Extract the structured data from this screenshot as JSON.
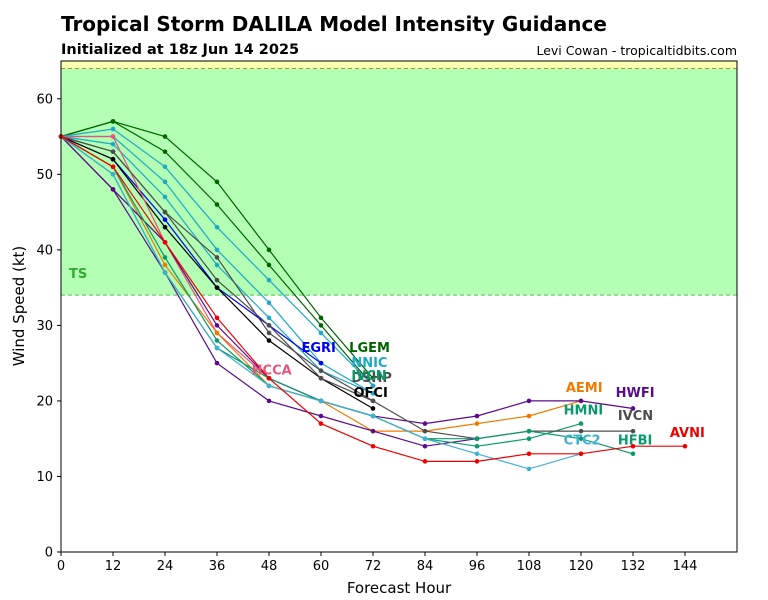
{
  "header": {
    "title": "Tropical Storm DALILA Model Intensity Guidance",
    "subtitle": "Initialized at 18z Jun 14 2025",
    "credit": "Levi Cowan - tropicaltidbits.com"
  },
  "chart_data": {
    "type": "line",
    "xlabel": "Forecast Hour",
    "ylabel": "Wind Speed (kt)",
    "xlim": [
      0,
      156
    ],
    "ylim": [
      0,
      65
    ],
    "xticks": [
      0,
      12,
      24,
      36,
      48,
      60,
      72,
      84,
      96,
      108,
      120,
      132,
      144
    ],
    "yticks": [
      0,
      10,
      20,
      30,
      40,
      50,
      60
    ],
    "grid": false,
    "legend": "none",
    "bands": [
      {
        "label": "TS",
        "from": 34,
        "to": 64,
        "color": "#b3ffb3",
        "label_color": "#33aa33"
      },
      {
        "label": "",
        "from": 64,
        "to": 65,
        "color": "#ffffb3",
        "label_color": "#888800"
      }
    ],
    "series": [
      {
        "name": "LGEM",
        "color": "#006400",
        "x": [
          0,
          12,
          24,
          36,
          48,
          60,
          72
        ],
        "y": [
          55,
          57,
          55,
          49,
          40,
          31,
          23
        ]
      },
      {
        "name": "",
        "color": "#006400",
        "x": [
          0,
          12,
          24,
          36,
          48,
          60,
          72
        ],
        "y": [
          55,
          57,
          53,
          46,
          38,
          30,
          22
        ]
      },
      {
        "name": "NNIC",
        "color": "#1fa8c9",
        "x": [
          0,
          12,
          24,
          36,
          48,
          60,
          72
        ],
        "y": [
          55,
          56,
          51,
          43,
          36,
          29,
          22
        ]
      },
      {
        "name": "",
        "color": "#1fa8c9",
        "x": [
          0,
          12,
          24,
          36,
          48,
          60,
          72
        ],
        "y": [
          55,
          55,
          49,
          40,
          33,
          25,
          21
        ]
      },
      {
        "name": "",
        "color": "#1fa8c9",
        "x": [
          0,
          12,
          24,
          36,
          48,
          60,
          72
        ],
        "y": [
          55,
          54,
          47,
          38,
          31,
          24,
          21
        ]
      },
      {
        "name": "DSHP",
        "color": "#4d4d4d",
        "x": [
          0,
          12,
          24,
          36,
          48,
          60,
          72
        ],
        "y": [
          55,
          53,
          45,
          39,
          29,
          24,
          20
        ]
      },
      {
        "name": "EGRI",
        "color": "#0000ee",
        "x": [
          0,
          12,
          24,
          36,
          48,
          60
        ],
        "y": [
          55,
          52,
          44,
          35,
          30,
          25
        ]
      },
      {
        "name": "OFCI",
        "color": "#000000",
        "x": [
          0,
          12,
          24,
          36,
          48,
          60,
          72
        ],
        "y": [
          55,
          52,
          43,
          35,
          28,
          23,
          19
        ]
      },
      {
        "name": "HCCA",
        "color": "#e8547a",
        "x": [
          0,
          12,
          24,
          36,
          48
        ],
        "y": [
          55,
          55,
          41,
          29,
          23
        ]
      },
      {
        "name": "AEMI",
        "color": "#f07a00",
        "x": [
          0,
          12,
          24,
          36,
          48,
          60,
          72,
          84,
          96,
          108,
          120
        ],
        "y": [
          55,
          51,
          38,
          29,
          22,
          20,
          16,
          16,
          17,
          18,
          20
        ]
      },
      {
        "name": "HWFI",
        "color": "#5c0a8a",
        "x": [
          0,
          12,
          24,
          36,
          48,
          60,
          72,
          84,
          96,
          108,
          120,
          132
        ],
        "y": [
          55,
          48,
          41,
          30,
          23,
          20,
          18,
          17,
          18,
          20,
          20,
          19
        ]
      },
      {
        "name": "",
        "color": "#5c0a8a",
        "x": [
          0,
          12,
          24,
          36,
          48,
          60,
          72,
          84,
          96
        ],
        "y": [
          55,
          48,
          37,
          25,
          20,
          18,
          16,
          14,
          15
        ]
      },
      {
        "name": "HMNI",
        "color": "#0a9a6a",
        "x": [
          0,
          12,
          24,
          36,
          48,
          60,
          72,
          84,
          96,
          108,
          120
        ],
        "y": [
          55,
          51,
          39,
          28,
          22,
          20,
          18,
          15,
          14,
          15,
          17
        ]
      },
      {
        "name": "IVCN",
        "color": "#4d4d4d",
        "x": [
          0,
          12,
          24,
          36,
          48,
          60,
          72,
          84,
          96,
          108,
          120,
          132
        ],
        "y": [
          55,
          53,
          45,
          36,
          30,
          23,
          20,
          16,
          15,
          16,
          16,
          16
        ]
      },
      {
        "name": "HFBI",
        "color": "#0a9a6a",
        "x": [
          0,
          12,
          24,
          36,
          48,
          60,
          72,
          84,
          96,
          108,
          120,
          132
        ],
        "y": [
          55,
          50,
          37,
          27,
          23,
          20,
          18,
          15,
          15,
          16,
          15,
          13
        ]
      },
      {
        "name": "CTC2",
        "color": "#40b0d0",
        "x": [
          0,
          12,
          24,
          36,
          48,
          60,
          72,
          84,
          96,
          108,
          120
        ],
        "y": [
          55,
          50,
          37,
          27,
          22,
          20,
          18,
          15,
          13,
          11,
          13
        ]
      },
      {
        "name": "AVNI",
        "color": "#ee0000",
        "x": [
          0,
          12,
          24,
          36,
          48,
          60,
          72,
          84,
          96,
          108,
          120,
          132,
          144
        ],
        "y": [
          55,
          51,
          41,
          31,
          23,
          17,
          14,
          12,
          12,
          13,
          13,
          14,
          14
        ]
      }
    ],
    "labels": [
      {
        "text": "LGEM",
        "color": "#006400",
        "x": 66.5,
        "y": 26.5
      },
      {
        "text": "NNIC",
        "color": "#1fa8c9",
        "x": 67,
        "y": 24.5
      },
      {
        "text": "DSHP",
        "color": "#4d4d4d",
        "x": 67,
        "y": 22.5
      },
      {
        "text": "IVCN",
        "color": "#0a9a6a",
        "x": 67,
        "y": 22.8
      },
      {
        "text": "EGRI",
        "color": "#0000ee",
        "x": 55.5,
        "y": 26.5
      },
      {
        "text": "OFCI",
        "color": "#000000",
        "x": 67.5,
        "y": 20.5
      },
      {
        "text": "HCCA",
        "color": "#e8547a",
        "x": 44,
        "y": 23.5
      },
      {
        "text": "AEMI",
        "color": "#f07a00",
        "x": 116.5,
        "y": 21.2
      },
      {
        "text": "HWFI",
        "color": "#5c0a8a",
        "x": 128,
        "y": 20.5
      },
      {
        "text": "HMNI",
        "color": "#0a9a6a",
        "x": 116,
        "y": 18.2
      },
      {
        "text": "IVCN",
        "color": "#4d4d4d",
        "x": 128.5,
        "y": 17.5
      },
      {
        "text": "CTC2",
        "color": "#40b0d0",
        "x": 116,
        "y": 14.2
      },
      {
        "text": "HFBI",
        "color": "#0a9a6a",
        "x": 128.5,
        "y": 14.2
      },
      {
        "text": "AVNI",
        "color": "#ee0000",
        "x": 140.5,
        "y": 15.2
      }
    ]
  }
}
